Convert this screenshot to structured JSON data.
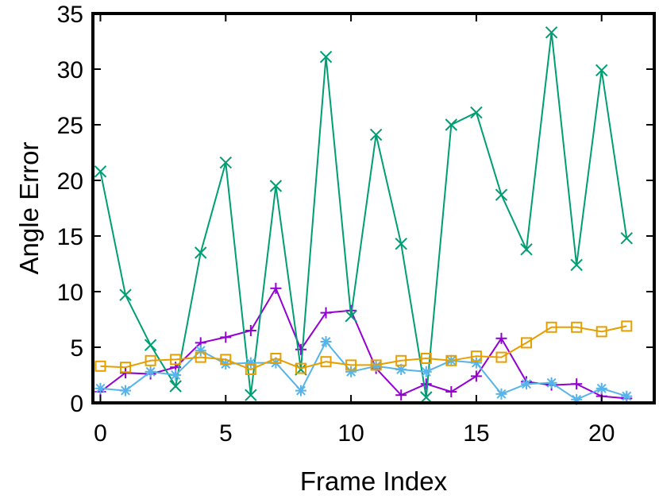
{
  "chart_data": {
    "type": "line",
    "title": "",
    "xlabel": "Frame Index",
    "ylabel": "Angle Error",
    "xlim": [
      -0.3,
      22.1
    ],
    "ylim": [
      0,
      35
    ],
    "xticks": [
      0,
      5,
      10,
      15,
      20
    ],
    "yticks": [
      0,
      5,
      10,
      15,
      20,
      25,
      30,
      35
    ],
    "grid": false,
    "legend": "none",
    "x": [
      0,
      1,
      2,
      3,
      4,
      5,
      6,
      7,
      8,
      9,
      10,
      11,
      12,
      13,
      14,
      15,
      16,
      17,
      18,
      19,
      20,
      21
    ],
    "series": [
      {
        "color": "#9400d3",
        "marker": "plus",
        "values": [
          1.0,
          2.7,
          2.6,
          3.2,
          5.4,
          5.9,
          6.5,
          10.3,
          4.8,
          8.1,
          8.3,
          3.1,
          0.7,
          1.7,
          1.0,
          2.4,
          5.8,
          1.9,
          1.6,
          1.7,
          0.6,
          0.4
        ]
      },
      {
        "color": "#009e73",
        "marker": "x",
        "values": [
          20.8,
          9.7,
          5.2,
          1.5,
          13.5,
          21.6,
          0.7,
          19.5,
          3.0,
          31.1,
          7.8,
          24.1,
          14.3,
          0.5,
          25.0,
          26.1,
          18.7,
          13.8,
          33.3,
          12.4,
          29.9,
          14.8
        ]
      },
      {
        "color": "#56b4e9",
        "marker": "asterisk",
        "values": [
          1.3,
          1.1,
          2.8,
          2.5,
          4.7,
          3.5,
          3.6,
          3.6,
          1.1,
          5.5,
          2.8,
          3.3,
          3.0,
          2.8,
          3.8,
          3.6,
          0.8,
          1.7,
          1.8,
          0.3,
          1.3,
          0.6
        ]
      },
      {
        "color": "#e69f00",
        "marker": "square",
        "values": [
          3.3,
          3.2,
          3.8,
          3.9,
          4.1,
          3.9,
          3.0,
          4.0,
          3.1,
          3.7,
          3.4,
          3.4,
          3.8,
          4.0,
          3.8,
          4.2,
          4.1,
          5.4,
          6.8,
          6.8,
          6.4,
          6.9
        ]
      }
    ]
  }
}
